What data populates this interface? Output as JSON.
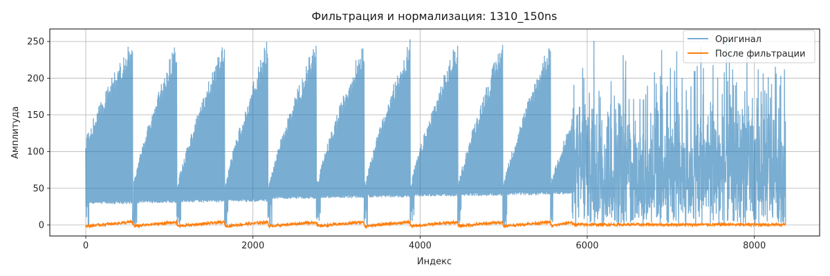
{
  "chart_data": {
    "type": "line",
    "title": "Фильтрация и нормализация: 1310_150ns",
    "xlabel": "Индекс",
    "ylabel": "Амплитуда",
    "xlim": [
      -430,
      8780
    ],
    "ylim": [
      -15,
      267
    ],
    "x_ticks": [
      0,
      2000,
      4000,
      6000,
      8000
    ],
    "y_ticks": [
      0,
      50,
      100,
      150,
      200,
      250
    ],
    "grid": true,
    "legend_position": "top-right",
    "series": [
      {
        "name": "Оригинал",
        "color": "#1f77b4",
        "opacity": 0.6,
        "description_kind": "envelope",
        "x_range": [
          0,
          8370
        ],
        "segments": [
          {
            "x_start": 0,
            "x_end": 560,
            "floor": 29,
            "peak_start": 115,
            "peak_end": 255
          },
          {
            "x_start": 580,
            "x_end": 1090,
            "floor": 30,
            "peak_start": 60,
            "peak_end": 255
          },
          {
            "x_start": 1100,
            "x_end": 1660,
            "floor": 31,
            "peak_start": 55,
            "peak_end": 255
          },
          {
            "x_start": 1670,
            "x_end": 2180,
            "floor": 32,
            "peak_start": 55,
            "peak_end": 255
          },
          {
            "x_start": 2190,
            "x_end": 2760,
            "floor": 36,
            "peak_start": 55,
            "peak_end": 255
          },
          {
            "x_start": 2770,
            "x_end": 3330,
            "floor": 37,
            "peak_start": 55,
            "peak_end": 255
          },
          {
            "x_start": 3340,
            "x_end": 3880,
            "floor": 38,
            "peak_start": 55,
            "peak_end": 255
          },
          {
            "x_start": 3890,
            "x_end": 4450,
            "floor": 39,
            "peak_start": 55,
            "peak_end": 255
          },
          {
            "x_start": 4460,
            "x_end": 4990,
            "floor": 40,
            "peak_start": 55,
            "peak_end": 255
          },
          {
            "x_start": 5000,
            "x_end": 5560,
            "floor": 41,
            "peak_start": 55,
            "peak_end": 255
          },
          {
            "x_start": 5570,
            "x_end": 5820,
            "floor": 42,
            "peak_start": 60,
            "peak_end": 145
          }
        ],
        "noisy_region": {
          "x_start": 5830,
          "x_end": 8370,
          "min": 0,
          "max": 255
        }
      },
      {
        "name": "После фильтрации",
        "color": "#ff7f0e",
        "opacity": 1.0,
        "x_range": [
          0,
          8370
        ],
        "baseline": 0,
        "ripple_max": 4
      }
    ]
  }
}
